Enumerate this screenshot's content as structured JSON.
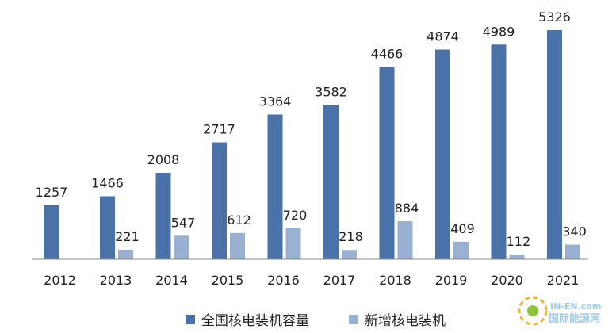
{
  "chart_data": {
    "type": "bar",
    "categories": [
      "2012",
      "2013",
      "2014",
      "2015",
      "2016",
      "2017",
      "2018",
      "2019",
      "2020",
      "2021"
    ],
    "series": [
      {
        "name": "全国核电装机容量",
        "color": "#4a72a8",
        "values": [
          1257,
          1466,
          2008,
          2717,
          3364,
          3582,
          4466,
          4874,
          4989,
          5326
        ]
      },
      {
        "name": "新增核电装机",
        "color": "#98b0d2",
        "values": [
          null,
          221,
          547,
          612,
          720,
          218,
          884,
          409,
          112,
          340
        ]
      }
    ],
    "title": "",
    "xlabel": "",
    "ylabel": "",
    "ylim": [
      0,
      5500
    ],
    "grid": false,
    "legend_position": "bottom"
  },
  "watermark": {
    "top": "IN-EN.com",
    "bottom": "国际能源网"
  }
}
